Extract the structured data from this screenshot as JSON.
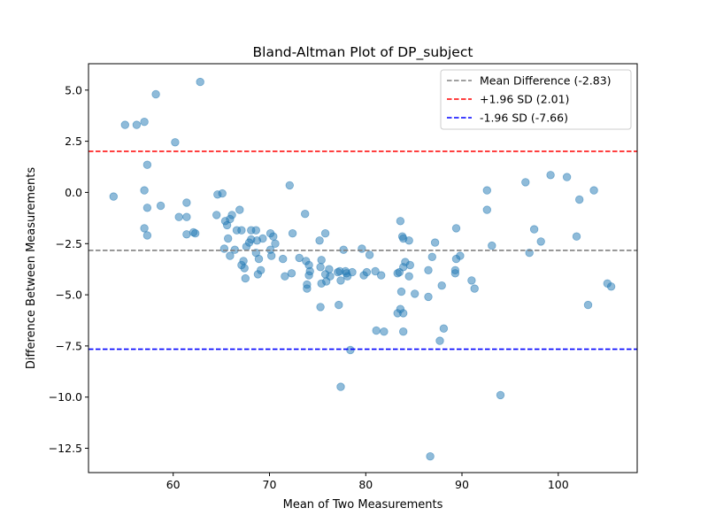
{
  "chart_data": {
    "type": "scatter",
    "title": "Bland-Altman Plot of DP_subject",
    "xlabel": "Mean of Two Measurements",
    "ylabel": "Difference Between Measurements",
    "xlim": [
      51.2,
      108.2
    ],
    "ylim": [
      -13.69,
      6.29
    ],
    "xticks": [
      60,
      70,
      80,
      90,
      100
    ],
    "yticks": [
      5.0,
      2.5,
      0.0,
      -2.5,
      -5.0,
      -7.5,
      -10.0,
      -12.5
    ],
    "xtick_labels": [
      "60",
      "70",
      "80",
      "90",
      "100"
    ],
    "ytick_labels": [
      "5.0",
      "2.5",
      "0.0",
      "−2.5",
      "−5.0",
      "−7.5",
      "−10.0",
      "−12.5"
    ],
    "grid": false,
    "legend_position": "top-right",
    "point_color": "#1f77b4",
    "reference_lines": [
      {
        "label": "Mean Difference (-2.83)",
        "value": -2.83,
        "color": "#808080"
      },
      {
        "label": "+1.96 SD (2.01)",
        "value": 2.01,
        "color": "#ff0000"
      },
      {
        "label": "-1.96 SD (-7.66)",
        "value": -7.66,
        "color": "#0000ff"
      }
    ],
    "points": [
      [
        53.8,
        -0.2
      ],
      [
        55.0,
        3.3
      ],
      [
        56.2,
        3.3
      ],
      [
        57.0,
        3.45
      ],
      [
        58.2,
        4.8
      ],
      [
        62.8,
        5.4
      ],
      [
        60.2,
        2.45
      ],
      [
        57.3,
        1.35
      ],
      [
        57.0,
        0.1
      ],
      [
        58.7,
        -0.65
      ],
      [
        57.3,
        -0.75
      ],
      [
        57.0,
        -1.75
      ],
      [
        57.3,
        -2.1
      ],
      [
        61.4,
        -0.5
      ],
      [
        60.6,
        -1.2
      ],
      [
        61.4,
        -1.2
      ],
      [
        61.4,
        -2.05
      ],
      [
        62.1,
        -1.95
      ],
      [
        62.3,
        -2.0
      ],
      [
        64.6,
        -0.1
      ],
      [
        65.1,
        -0.05
      ],
      [
        64.5,
        -1.1
      ],
      [
        65.4,
        -1.4
      ],
      [
        65.6,
        -1.6
      ],
      [
        66.1,
        -1.1
      ],
      [
        65.9,
        -1.3
      ],
      [
        66.9,
        -0.85
      ],
      [
        66.6,
        -1.85
      ],
      [
        67.1,
        -1.85
      ],
      [
        65.7,
        -2.25
      ],
      [
        65.9,
        -3.1
      ],
      [
        65.3,
        -2.75
      ],
      [
        66.4,
        -2.8
      ],
      [
        67.1,
        -3.55
      ],
      [
        67.3,
        -3.35
      ],
      [
        67.4,
        -3.7
      ],
      [
        67.5,
        -4.2
      ],
      [
        67.6,
        -2.65
      ],
      [
        67.9,
        -2.45
      ],
      [
        68.1,
        -1.85
      ],
      [
        68.1,
        -2.3
      ],
      [
        68.6,
        -1.85
      ],
      [
        68.7,
        -2.35
      ],
      [
        68.6,
        -2.95
      ],
      [
        68.9,
        -3.25
      ],
      [
        68.8,
        -4.0
      ],
      [
        69.1,
        -3.8
      ],
      [
        69.3,
        -2.25
      ],
      [
        70.1,
        -2.0
      ],
      [
        70.4,
        -2.15
      ],
      [
        70.6,
        -2.5
      ],
      [
        70.1,
        -2.8
      ],
      [
        70.2,
        -3.1
      ],
      [
        71.4,
        -3.25
      ],
      [
        71.6,
        -4.1
      ],
      [
        72.1,
        0.35
      ],
      [
        72.4,
        -2.0
      ],
      [
        72.3,
        -3.95
      ],
      [
        73.1,
        -3.2
      ],
      [
        73.7,
        -1.05
      ],
      [
        73.8,
        -3.35
      ],
      [
        74.1,
        -3.55
      ],
      [
        74.2,
        -3.85
      ],
      [
        74.1,
        -4.05
      ],
      [
        73.9,
        -4.5
      ],
      [
        73.9,
        -4.7
      ],
      [
        75.2,
        -2.35
      ],
      [
        75.4,
        -3.3
      ],
      [
        75.3,
        -3.65
      ],
      [
        75.8,
        -2.0
      ],
      [
        75.8,
        -4.0
      ],
      [
        75.9,
        -4.35
      ],
      [
        76.2,
        -3.75
      ],
      [
        75.4,
        -4.45
      ],
      [
        76.3,
        -4.1
      ],
      [
        75.3,
        -5.6
      ],
      [
        77.1,
        -3.9
      ],
      [
        77.2,
        -5.5
      ],
      [
        77.3,
        -3.85
      ],
      [
        77.4,
        -4.3
      ],
      [
        77.7,
        -2.8
      ],
      [
        77.9,
        -3.85
      ],
      [
        78.0,
        -3.95
      ],
      [
        78.1,
        -4.1
      ],
      [
        78.6,
        -3.9
      ],
      [
        78.4,
        -7.7
      ],
      [
        77.4,
        -9.5
      ],
      [
        79.6,
        -2.75
      ],
      [
        79.8,
        -4.05
      ],
      [
        80.1,
        -3.9
      ],
      [
        80.4,
        -3.05
      ],
      [
        81.0,
        -3.85
      ],
      [
        81.1,
        -6.75
      ],
      [
        81.6,
        -4.05
      ],
      [
        81.9,
        -6.8
      ],
      [
        83.3,
        -3.95
      ],
      [
        83.5,
        -3.9
      ],
      [
        83.3,
        -5.9
      ],
      [
        83.6,
        -5.7
      ],
      [
        83.6,
        -1.4
      ],
      [
        83.8,
        -2.15
      ],
      [
        83.9,
        -2.25
      ],
      [
        84.1,
        -3.4
      ],
      [
        83.9,
        -3.65
      ],
      [
        83.7,
        -4.85
      ],
      [
        83.9,
        -5.9
      ],
      [
        83.9,
        -6.8
      ],
      [
        84.5,
        -2.35
      ],
      [
        84.6,
        -3.55
      ],
      [
        84.5,
        -4.1
      ],
      [
        85.1,
        -4.95
      ],
      [
        86.5,
        -3.8
      ],
      [
        86.5,
        -5.1
      ],
      [
        86.9,
        -3.15
      ],
      [
        87.2,
        -2.45
      ],
      [
        87.7,
        -7.25
      ],
      [
        87.9,
        -4.55
      ],
      [
        88.1,
        -6.65
      ],
      [
        86.7,
        -12.9
      ],
      [
        89.4,
        -1.75
      ],
      [
        89.8,
        -3.1
      ],
      [
        89.4,
        -3.25
      ],
      [
        89.3,
        -3.8
      ],
      [
        89.3,
        -3.95
      ],
      [
        91.0,
        -4.3
      ],
      [
        91.3,
        -4.7
      ],
      [
        92.6,
        0.1
      ],
      [
        92.6,
        -0.85
      ],
      [
        93.1,
        -2.6
      ],
      [
        94.0,
        -9.9
      ],
      [
        96.6,
        0.5
      ],
      [
        97.0,
        -2.95
      ],
      [
        97.5,
        -1.8
      ],
      [
        98.2,
        -2.4
      ],
      [
        99.2,
        0.85
      ],
      [
        100.9,
        0.75
      ],
      [
        102.2,
        -0.35
      ],
      [
        101.9,
        -2.15
      ],
      [
        103.7,
        0.1
      ],
      [
        103.1,
        -5.5
      ],
      [
        105.1,
        -4.45
      ],
      [
        105.5,
        -4.6
      ]
    ]
  }
}
